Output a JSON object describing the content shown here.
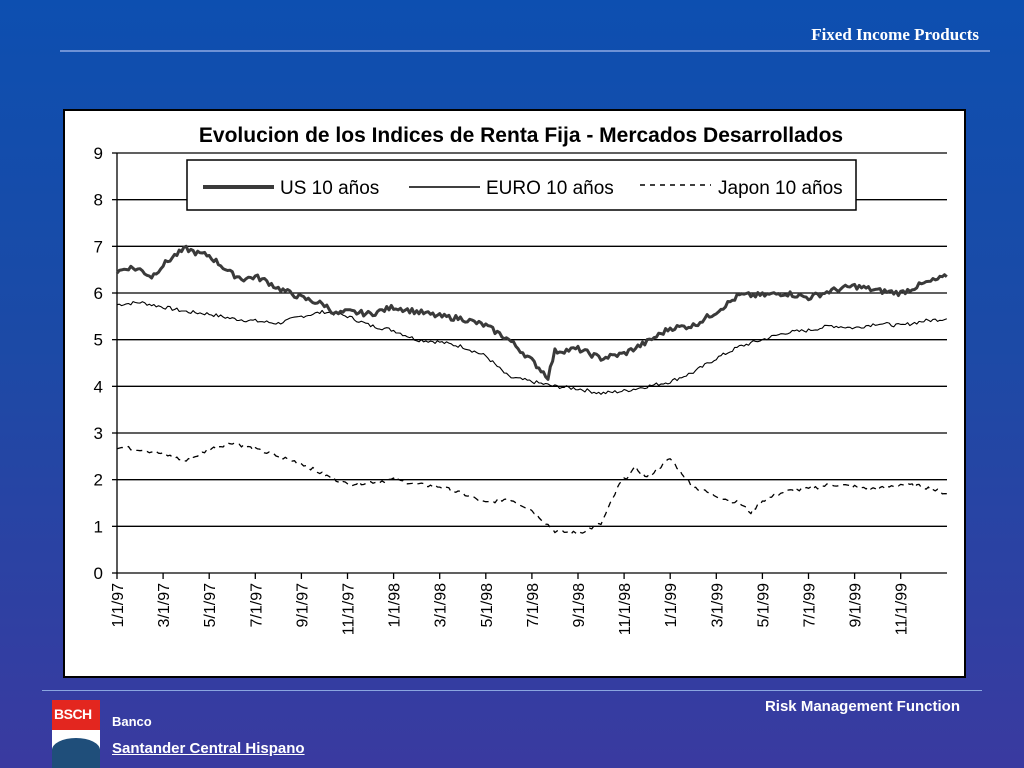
{
  "header": {
    "title": "Fixed Income Products"
  },
  "footer": {
    "right_text": "Risk Management Function",
    "bank_label": "Banco",
    "bank_name": "Santander Central Hispano",
    "logo_text": "BSCH"
  },
  "colors": {
    "background_top": "#0d4fb0",
    "background_bottom": "#3a3aa0",
    "logo_red": "#e3261f",
    "logo_blue": "#1f4e7a"
  },
  "chart_data": {
    "type": "line",
    "title": "Evolucion de los Indices de Renta Fija - Mercados Desarrollados",
    "xlabel": "",
    "ylabel": "",
    "ylim": [
      0,
      9
    ],
    "yticks": [
      "0",
      "1",
      "2",
      "3",
      "4",
      "5",
      "6",
      "7",
      "8",
      "9"
    ],
    "xticks": [
      "1/1/97",
      "3/1/97",
      "5/1/97",
      "7/1/97",
      "9/1/97",
      "11/1/97",
      "1/1/98",
      "3/1/98",
      "5/1/98",
      "7/1/98",
      "9/1/98",
      "11/1/98",
      "1/1/99",
      "3/1/99",
      "5/1/99",
      "7/1/99",
      "9/1/99",
      "11/1/99"
    ],
    "grid": "horizontal",
    "legend": {
      "placement": "top-center"
    },
    "series": [
      {
        "name": "US 10 años",
        "style": "thick-solid",
        "points": [
          [
            0,
            6.45
          ],
          [
            0.5,
            6.55
          ],
          [
            1,
            6.5
          ],
          [
            1.5,
            6.35
          ],
          [
            2,
            6.6
          ],
          [
            2.5,
            6.8
          ],
          [
            3,
            6.95
          ],
          [
            3.5,
            6.85
          ],
          [
            4,
            6.8
          ],
          [
            4.5,
            6.6
          ],
          [
            5,
            6.4
          ],
          [
            5.5,
            6.3
          ],
          [
            6,
            6.35
          ],
          [
            6.5,
            6.25
          ],
          [
            7,
            6.1
          ],
          [
            7.5,
            6.0
          ],
          [
            8,
            5.9
          ],
          [
            9,
            5.75
          ],
          [
            9.5,
            5.55
          ],
          [
            10,
            5.6
          ],
          [
            11,
            5.55
          ],
          [
            12,
            5.7
          ],
          [
            13,
            5.6
          ],
          [
            14,
            5.5
          ],
          [
            15,
            5.45
          ],
          [
            16,
            5.3
          ],
          [
            17,
            5.0
          ],
          [
            18,
            4.55
          ],
          [
            18.7,
            4.2
          ],
          [
            19,
            4.75
          ],
          [
            20,
            4.8
          ],
          [
            21,
            4.6
          ],
          [
            22,
            4.7
          ],
          [
            23,
            4.95
          ],
          [
            24,
            5.25
          ],
          [
            25,
            5.3
          ],
          [
            26,
            5.6
          ],
          [
            27,
            5.95
          ],
          [
            28,
            5.95
          ],
          [
            29,
            6.0
          ],
          [
            30,
            5.9
          ],
          [
            31,
            6.05
          ],
          [
            32,
            6.15
          ],
          [
            33,
            6.05
          ],
          [
            34,
            6.0
          ],
          [
            35,
            6.2
          ],
          [
            36,
            6.35
          ]
        ]
      },
      {
        "name": "EURO 10 años",
        "style": "thin-solid",
        "points": [
          [
            0,
            5.75
          ],
          [
            1,
            5.8
          ],
          [
            2,
            5.7
          ],
          [
            3,
            5.6
          ],
          [
            4,
            5.55
          ],
          [
            5,
            5.45
          ],
          [
            6,
            5.4
          ],
          [
            7,
            5.35
          ],
          [
            8,
            5.5
          ],
          [
            9,
            5.6
          ],
          [
            10,
            5.5
          ],
          [
            11,
            5.3
          ],
          [
            12,
            5.2
          ],
          [
            13,
            5.0
          ],
          [
            14,
            4.95
          ],
          [
            15,
            4.85
          ],
          [
            16,
            4.65
          ],
          [
            17,
            4.2
          ],
          [
            18,
            4.1
          ],
          [
            19,
            4.0
          ],
          [
            20,
            3.95
          ],
          [
            21,
            3.85
          ],
          [
            22,
            3.9
          ],
          [
            23,
            4.0
          ],
          [
            24,
            4.1
          ],
          [
            25,
            4.3
          ],
          [
            26,
            4.6
          ],
          [
            27,
            4.85
          ],
          [
            28,
            5.0
          ],
          [
            29,
            5.15
          ],
          [
            30,
            5.2
          ],
          [
            31,
            5.3
          ],
          [
            32,
            5.25
          ],
          [
            33,
            5.35
          ],
          [
            34,
            5.3
          ],
          [
            35,
            5.4
          ],
          [
            36,
            5.45
          ]
        ]
      },
      {
        "name": "Japon 10 años",
        "style": "dashed",
        "points": [
          [
            0,
            2.7
          ],
          [
            1,
            2.65
          ],
          [
            2,
            2.55
          ],
          [
            3,
            2.4
          ],
          [
            4,
            2.65
          ],
          [
            5,
            2.8
          ],
          [
            6,
            2.65
          ],
          [
            7,
            2.5
          ],
          [
            8,
            2.35
          ],
          [
            9,
            2.1
          ],
          [
            10,
            1.9
          ],
          [
            11,
            1.95
          ],
          [
            12,
            2.0
          ],
          [
            13,
            1.9
          ],
          [
            14,
            1.85
          ],
          [
            15,
            1.7
          ],
          [
            16,
            1.5
          ],
          [
            17,
            1.6
          ],
          [
            18,
            1.35
          ],
          [
            19,
            0.9
          ],
          [
            20,
            0.85
          ],
          [
            21,
            1.05
          ],
          [
            21.8,
            1.9
          ],
          [
            22.5,
            2.25
          ],
          [
            23,
            2.05
          ],
          [
            24,
            2.45
          ],
          [
            25,
            1.85
          ],
          [
            26,
            1.65
          ],
          [
            27,
            1.5
          ],
          [
            27.5,
            1.3
          ],
          [
            28,
            1.55
          ],
          [
            29,
            1.75
          ],
          [
            30,
            1.8
          ],
          [
            31,
            1.9
          ],
          [
            32,
            1.85
          ],
          [
            33,
            1.8
          ],
          [
            34,
            1.9
          ],
          [
            35,
            1.85
          ],
          [
            36,
            1.7
          ]
        ]
      }
    ]
  }
}
